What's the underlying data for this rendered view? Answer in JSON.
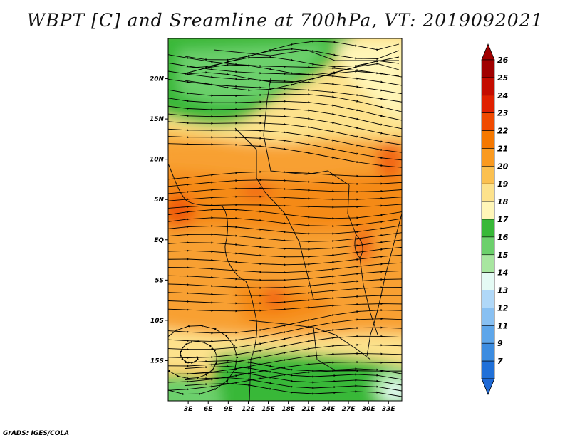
{
  "title": "WBPT [C] and Sreamline at 700hPa, VT: 2019092021",
  "footer": "GrADS: IGES/COLA",
  "map": {
    "lon_range": [
      0,
      35
    ],
    "lat_range": [
      -20,
      25
    ],
    "lon_ticks": [
      {
        "lon": 3,
        "label": "3E"
      },
      {
        "lon": 6,
        "label": "6E"
      },
      {
        "lon": 9,
        "label": "9E"
      },
      {
        "lon": 12,
        "label": "12E"
      },
      {
        "lon": 15,
        "label": "15E"
      },
      {
        "lon": 18,
        "label": "18E"
      },
      {
        "lon": 21,
        "label": "21E"
      },
      {
        "lon": 24,
        "label": "24E"
      },
      {
        "lon": 27,
        "label": "27E"
      },
      {
        "lon": 30,
        "label": "30E"
      },
      {
        "lon": 33,
        "label": "33E"
      }
    ],
    "lat_ticks": [
      {
        "lat": 20,
        "label": "20N"
      },
      {
        "lat": 15,
        "label": "15N"
      },
      {
        "lat": 10,
        "label": "10N"
      },
      {
        "lat": 5,
        "label": "5N"
      },
      {
        "lat": 0,
        "label": "EQ"
      },
      {
        "lat": -5,
        "label": "5S"
      },
      {
        "lat": -10,
        "label": "10S"
      },
      {
        "lat": -15,
        "label": "15S"
      }
    ]
  },
  "colorbar": {
    "levels": [
      {
        "label": "26",
        "color": "#a00000"
      },
      {
        "label": "25",
        "color": "#c40c00"
      },
      {
        "label": "24",
        "color": "#e02000"
      },
      {
        "label": "23",
        "color": "#f04a00"
      },
      {
        "label": "22",
        "color": "#f57800"
      },
      {
        "label": "21",
        "color": "#fa9a20"
      },
      {
        "label": "20",
        "color": "#fbc050"
      },
      {
        "label": "19",
        "color": "#fde28c"
      },
      {
        "label": "18",
        "color": "#fff6b8"
      },
      {
        "label": "17",
        "color": "#38b838"
      },
      {
        "label": "16",
        "color": "#6cd06c"
      },
      {
        "label": "15",
        "color": "#a8e6a0"
      },
      {
        "label": "14",
        "color": "#e4faf4"
      },
      {
        "label": "13",
        "color": "#b0d8f8"
      },
      {
        "label": "12",
        "color": "#88c0f2"
      },
      {
        "label": "11",
        "color": "#5ea6ea"
      },
      {
        "label": "9",
        "color": "#3c8ce0"
      },
      {
        "label": "7",
        "color": "#2070d8"
      }
    ],
    "top_color": "#a00000",
    "bottom_color": "#1e68d4"
  }
}
